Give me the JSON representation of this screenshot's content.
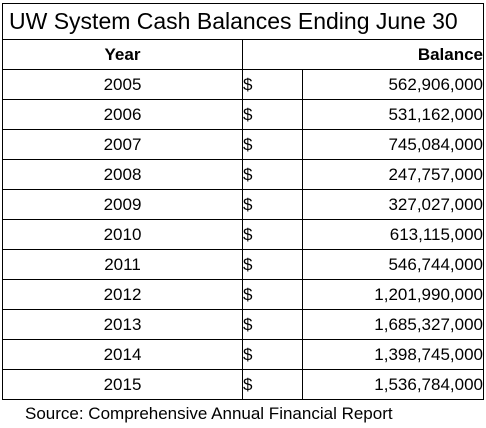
{
  "title": "UW System Cash Balances Ending June 30",
  "headers": {
    "year": "Year",
    "balance": "Balance"
  },
  "currency_symbol": "$",
  "rows": [
    {
      "year": "2005",
      "balance": "562,906,000"
    },
    {
      "year": "2006",
      "balance": "531,162,000"
    },
    {
      "year": "2007",
      "balance": "745,084,000"
    },
    {
      "year": "2008",
      "balance": "247,757,000"
    },
    {
      "year": "2009",
      "balance": "327,027,000"
    },
    {
      "year": "2010",
      "balance": "613,115,000"
    },
    {
      "year": "2011",
      "balance": "546,744,000"
    },
    {
      "year": "2012",
      "balance": "1,201,990,000"
    },
    {
      "year": "2013",
      "balance": "1,685,327,000"
    },
    {
      "year": "2014",
      "balance": "1,398,745,000"
    },
    {
      "year": "2015",
      "balance": "1,536,784,000"
    }
  ],
  "source": "Source: Comprehensive Annual Financial Report"
}
